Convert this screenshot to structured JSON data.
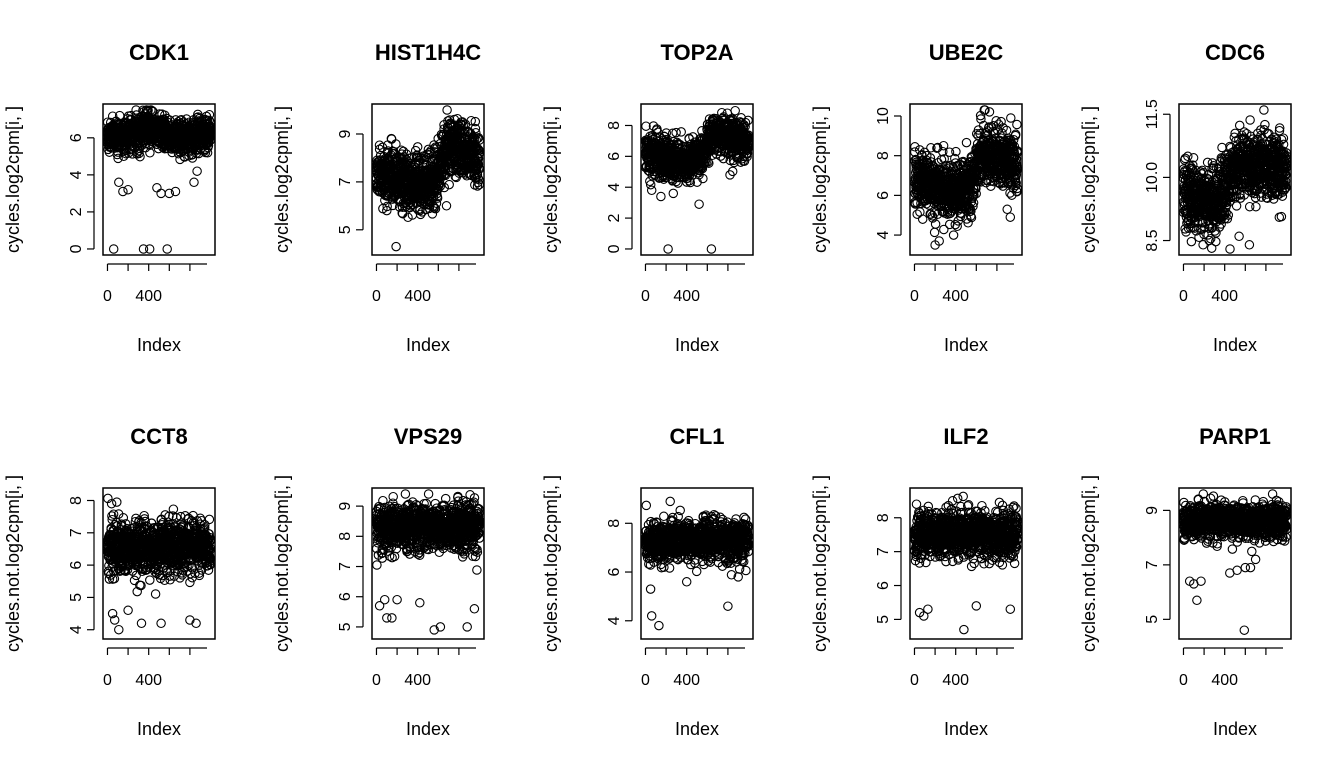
{
  "chart_data": [
    {
      "type": "scatter",
      "title": "CDK1",
      "xlabel": "Index",
      "ylabel": "cycles.log2cpm[i, ]",
      "xlim": [
        0,
        1000
      ],
      "xticks": [
        0,
        400
      ],
      "ylim": [
        0,
        7.5
      ],
      "yticks": [
        0,
        2,
        4,
        6
      ],
      "n_points": 1000,
      "bulk": {
        "center": 6.2,
        "spread": 0.6,
        "trend": [
          [
            0,
            6.0
          ],
          [
            400,
            6.5
          ],
          [
            700,
            6.0
          ],
          [
            1000,
            6.2
          ]
        ]
      },
      "outliers": [
        [
          60,
          0
        ],
        [
          350,
          0
        ],
        [
          410,
          0
        ],
        [
          580,
          0
        ],
        [
          150,
          3.1
        ],
        [
          200,
          3.2
        ],
        [
          110,
          3.6
        ],
        [
          480,
          3.3
        ],
        [
          520,
          3.0
        ],
        [
          600,
          3.0
        ],
        [
          660,
          3.1
        ],
        [
          840,
          3.6
        ],
        [
          870,
          4.2
        ]
      ]
    },
    {
      "type": "scatter",
      "title": "HIST1H4C",
      "xlabel": "Index",
      "ylabel": "cycles.log2cpm[i, ]",
      "xlim": [
        0,
        1000
      ],
      "xticks": [
        0,
        400
      ],
      "ylim": [
        4.2,
        10
      ],
      "yticks": [
        5,
        7,
        9
      ],
      "n_points": 1000,
      "bulk": {
        "center": 7.4,
        "spread": 0.8,
        "trend": [
          [
            0,
            7.4
          ],
          [
            300,
            7.0
          ],
          [
            550,
            7.0
          ],
          [
            700,
            8.5
          ],
          [
            1000,
            8.0
          ]
        ]
      },
      "outliers": [
        [
          190,
          4.3
        ],
        [
          100,
          5.8
        ],
        [
          250,
          5.7
        ],
        [
          420,
          5.8
        ],
        [
          680,
          6.0
        ],
        [
          560,
          5.9
        ]
      ]
    },
    {
      "type": "scatter",
      "title": "TOP2A",
      "xlabel": "Index",
      "ylabel": "cycles.log2cpm[i, ]",
      "xlim": [
        0,
        1000
      ],
      "xticks": [
        0,
        400
      ],
      "ylim": [
        0,
        9
      ],
      "yticks": [
        0,
        2,
        4,
        6,
        8
      ],
      "n_points": 1000,
      "bulk": {
        "center": 6.2,
        "spread": 0.9,
        "trend": [
          [
            0,
            6.2
          ],
          [
            300,
            5.5
          ],
          [
            550,
            6.0
          ],
          [
            650,
            7.5
          ],
          [
            1000,
            7.0
          ]
        ]
      },
      "outliers": [
        [
          220,
          0
        ],
        [
          640,
          0
        ],
        [
          520,
          2.9
        ],
        [
          150,
          3.4
        ],
        [
          270,
          3.6
        ],
        [
          820,
          4.8
        ],
        [
          60,
          3.8
        ]
      ]
    },
    {
      "type": "scatter",
      "title": "UBE2C",
      "xlabel": "Index",
      "ylabel": "cycles.log2cpm[i, ]",
      "xlim": [
        0,
        1000
      ],
      "xticks": [
        0,
        400
      ],
      "ylim": [
        3.3,
        10.3
      ],
      "yticks": [
        4,
        6,
        8,
        10
      ],
      "n_points": 1000,
      "bulk": {
        "center": 6.8,
        "spread": 1.0,
        "trend": [
          [
            0,
            6.8
          ],
          [
            300,
            6.3
          ],
          [
            550,
            6.5
          ],
          [
            650,
            8.2
          ],
          [
            1000,
            7.5
          ]
        ]
      },
      "outliers": [
        [
          200,
          3.5
        ],
        [
          240,
          3.7
        ],
        [
          380,
          4.0
        ],
        [
          80,
          4.8
        ],
        [
          930,
          4.9
        ],
        [
          900,
          5.3
        ]
      ]
    },
    {
      "type": "scatter",
      "title": "CDC6",
      "xlabel": "Index",
      "ylabel": "cycles.log2cpm[i, ]",
      "xlim": [
        0,
        1000
      ],
      "xticks": [
        0,
        400
      ],
      "ylim": [
        8.3,
        11.6
      ],
      "yticks": [
        8.5,
        10.0,
        11.5
      ],
      "ytick_labels": [
        "8.5",
        "10.0",
        "11.5"
      ],
      "n_points": 1000,
      "bulk": {
        "center": 9.8,
        "spread": 0.55,
        "trend": [
          [
            0,
            9.6
          ],
          [
            300,
            9.4
          ],
          [
            550,
            10.3
          ],
          [
            1000,
            10.2
          ]
        ]
      },
      "outliers": [
        [
          190,
          8.4
        ],
        [
          250,
          8.5
        ],
        [
          540,
          8.6
        ],
        [
          640,
          8.4
        ],
        [
          780,
          11.6
        ],
        [
          70,
          8.8
        ]
      ]
    },
    {
      "type": "scatter",
      "title": "CCT8",
      "xlabel": "Index",
      "ylabel": "cycles.not.log2cpm[i, ]",
      "xlim": [
        0,
        1000
      ],
      "xticks": [
        0,
        400
      ],
      "ylim": [
        3.9,
        8.2
      ],
      "yticks": [
        4,
        5,
        6,
        7,
        8
      ],
      "n_points": 1000,
      "bulk": {
        "center": 6.6,
        "spread": 0.55,
        "trend": [
          [
            0,
            6.5
          ],
          [
            1000,
            6.6
          ]
        ]
      },
      "outliers": [
        [
          110,
          4.0
        ],
        [
          70,
          4.3
        ],
        [
          50,
          4.5
        ],
        [
          200,
          4.6
        ],
        [
          330,
          4.2
        ],
        [
          520,
          4.2
        ],
        [
          800,
          4.3
        ],
        [
          860,
          4.2
        ],
        [
          40,
          7.9
        ],
        [
          90,
          7.95
        ]
      ]
    },
    {
      "type": "scatter",
      "title": "VPS29",
      "xlabel": "Index",
      "ylabel": "cycles.not.log2cpm[i, ]",
      "xlim": [
        0,
        1000
      ],
      "xticks": [
        0,
        400
      ],
      "ylim": [
        4.8,
        9.4
      ],
      "yticks": [
        5,
        6,
        7,
        8,
        9
      ],
      "n_points": 1000,
      "bulk": {
        "center": 8.3,
        "spread": 0.5,
        "trend": [
          [
            0,
            8.3
          ],
          [
            1000,
            8.3
          ]
        ]
      },
      "outliers": [
        [
          100,
          5.3
        ],
        [
          150,
          5.3
        ],
        [
          80,
          5.9
        ],
        [
          30,
          5.7
        ],
        [
          560,
          4.9
        ],
        [
          620,
          5.0
        ],
        [
          880,
          5.0
        ],
        [
          420,
          5.8
        ],
        [
          950,
          5.6
        ],
        [
          200,
          5.9
        ]
      ]
    },
    {
      "type": "scatter",
      "title": "CFL1",
      "xlabel": "Index",
      "ylabel": "cycles.not.log2cpm[i, ]",
      "xlim": [
        0,
        1000
      ],
      "xticks": [
        0,
        400
      ],
      "ylim": [
        3.5,
        9.2
      ],
      "yticks": [
        4,
        6,
        8
      ],
      "n_points": 1000,
      "bulk": {
        "center": 7.3,
        "spread": 0.55,
        "trend": [
          [
            0,
            7.2
          ],
          [
            1000,
            7.3
          ]
        ]
      },
      "outliers": [
        [
          130,
          3.8
        ],
        [
          60,
          4.2
        ],
        [
          240,
          8.9
        ],
        [
          800,
          4.6
        ],
        [
          50,
          5.3
        ],
        [
          400,
          5.6
        ],
        [
          900,
          5.8
        ]
      ]
    },
    {
      "type": "scatter",
      "title": "ILF2",
      "xlabel": "Index",
      "ylabel": "cycles.not.log2cpm[i, ]",
      "xlim": [
        0,
        1000
      ],
      "xticks": [
        0,
        400
      ],
      "ylim": [
        4.6,
        8.7
      ],
      "yticks": [
        5,
        6,
        7,
        8
      ],
      "n_points": 1000,
      "bulk": {
        "center": 7.5,
        "spread": 0.45,
        "trend": [
          [
            0,
            7.5
          ],
          [
            1000,
            7.5
          ]
        ]
      },
      "outliers": [
        [
          50,
          5.2
        ],
        [
          90,
          5.1
        ],
        [
          130,
          5.3
        ],
        [
          480,
          4.7
        ],
        [
          600,
          5.4
        ],
        [
          930,
          5.3
        ],
        [
          20,
          8.4
        ],
        [
          370,
          8.5
        ]
      ]
    },
    {
      "type": "scatter",
      "title": "PARP1",
      "xlabel": "Index",
      "ylabel": "cycles.not.log2cpm[i, ]",
      "xlim": [
        0,
        1000
      ],
      "xticks": [
        0,
        400
      ],
      "ylim": [
        4.5,
        9.6
      ],
      "yticks": [
        5,
        7,
        9
      ],
      "n_points": 1000,
      "bulk": {
        "center": 8.6,
        "spread": 0.4,
        "trend": [
          [
            0,
            8.6
          ],
          [
            1000,
            8.6
          ]
        ]
      },
      "outliers": [
        [
          130,
          5.7
        ],
        [
          100,
          6.3
        ],
        [
          60,
          6.4
        ],
        [
          170,
          6.4
        ],
        [
          450,
          6.7
        ],
        [
          520,
          6.8
        ],
        [
          600,
          6.9
        ],
        [
          650,
          6.9
        ],
        [
          590,
          4.6
        ],
        [
          700,
          7.2
        ]
      ]
    }
  ]
}
